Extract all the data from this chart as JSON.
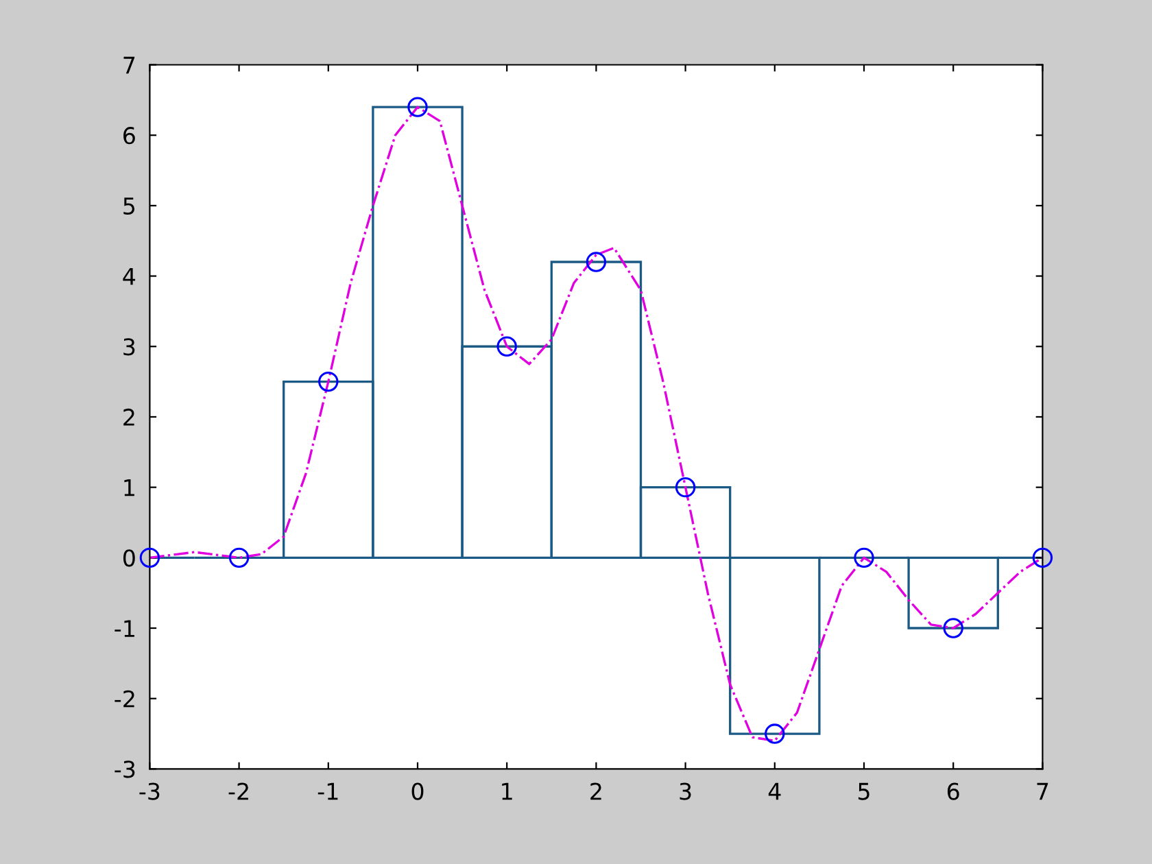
{
  "chart_data": {
    "type": "bar",
    "x": [
      -3,
      -2,
      -1,
      0,
      1,
      2,
      3,
      4,
      5,
      6,
      7
    ],
    "series": [
      {
        "color": "#1c5a86",
        "values": [
          0,
          0,
          2.5,
          6.4,
          3,
          4.2,
          1,
          -2.5,
          0,
          -1,
          0
        ]
      },
      {
        "type": "line",
        "color": "#e000e0",
        "line_style": "dashdot",
        "marker": "none",
        "x": [
          -3,
          -2.5,
          -2,
          -1.75,
          -1.5,
          -1.25,
          -1,
          -0.75,
          -0.5,
          -0.25,
          0,
          0.25,
          0.5,
          0.75,
          1,
          1.25,
          1.5,
          1.75,
          2,
          2.2,
          2.5,
          2.75,
          3,
          3.25,
          3.5,
          3.75,
          4,
          4.25,
          4.5,
          4.75,
          5,
          5.25,
          5.5,
          5.75,
          6,
          6.25,
          6.5,
          6.75,
          7
        ],
        "values": [
          0,
          0.08,
          0,
          0.05,
          0.3,
          1.2,
          2.5,
          3.9,
          5.0,
          6.0,
          6.4,
          6.2,
          5.0,
          3.8,
          3.0,
          2.75,
          3.1,
          3.9,
          4.3,
          4.4,
          3.8,
          2.5,
          1.0,
          -0.5,
          -1.8,
          -2.55,
          -2.6,
          -2.2,
          -1.3,
          -0.4,
          0,
          -0.2,
          -0.6,
          -0.95,
          -1.0,
          -0.8,
          -0.5,
          -0.2,
          0
        ]
      },
      {
        "type": "scatter",
        "color": "#0000ff",
        "marker": "circle",
        "values": [
          0,
          0,
          2.5,
          6.4,
          3,
          4.2,
          1,
          -2.5,
          0,
          -1,
          0
        ]
      }
    ],
    "xlim": [
      -3,
      7
    ],
    "ylim": [
      -3,
      7
    ],
    "xticks": [
      -3,
      -2,
      -1,
      0,
      1,
      2,
      3,
      4,
      5,
      6,
      7
    ],
    "yticks": [
      -3,
      -2,
      -1,
      0,
      1,
      2,
      3,
      4,
      5,
      6,
      7
    ],
    "grid": false,
    "legend": false
  }
}
